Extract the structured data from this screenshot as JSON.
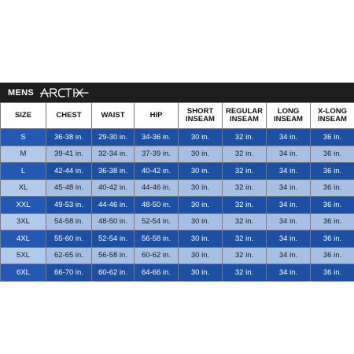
{
  "header": {
    "prefix": "MENS",
    "brand_logo_text": "ARCTIX"
  },
  "table": {
    "columns": [
      "SIZE",
      "CHEST",
      "WAIST",
      "HIP",
      "SHORT\nINSEAM",
      "REGULAR\nINSEAM",
      "LONG\nINSEAM",
      "X-LONG\nINSEAM"
    ],
    "rows": [
      [
        "S",
        "36-38 in.",
        "29-30 in.",
        "34-36 in.",
        "30 in.",
        "32 in.",
        "34 in.",
        "36 in."
      ],
      [
        "M",
        "39-41 in.",
        "32-34 in.",
        "37-39 in.",
        "30 in.",
        "32 in.",
        "34 in.",
        "36 in."
      ],
      [
        "L",
        "42-44 in.",
        "36-38 in.",
        "40-42 in.",
        "30 in.",
        "32 in.",
        "34 in.",
        "36 in."
      ],
      [
        "XL",
        "45-48 in.",
        "40-42 in.",
        "44-46 in.",
        "30 in.",
        "32 in.",
        "34 in.",
        "36 in."
      ],
      [
        "XXL",
        "49-53 in.",
        "44-46 in.",
        "48-50 in.",
        "30 in.",
        "32 in.",
        "34 in.",
        "36 in."
      ],
      [
        "3XL",
        "54-58 in.",
        "48-50 in.",
        "52-54 in.",
        "30 in.",
        "32 in.",
        "34 in.",
        "36 in."
      ],
      [
        "4XL",
        "55-60 in.",
        "52-54 in.",
        "56-58 in.",
        "30 in.",
        "32 in.",
        "34 in.",
        "36 in."
      ],
      [
        "5XL",
        "62-65 in.",
        "56-58 in.",
        "60-62 in.",
        "30 in.",
        "32 in.",
        "34 in.",
        "36 in."
      ],
      [
        "6XL",
        "66-70 in.",
        "60-62 in.",
        "64-66 in.",
        "30 in.",
        "32 in.",
        "34 in.",
        "36 in."
      ]
    ]
  },
  "colors": {
    "header_bar": "#1e1e1e",
    "row_dark": "#1d4fa2",
    "row_light": "#a7bfe3"
  }
}
